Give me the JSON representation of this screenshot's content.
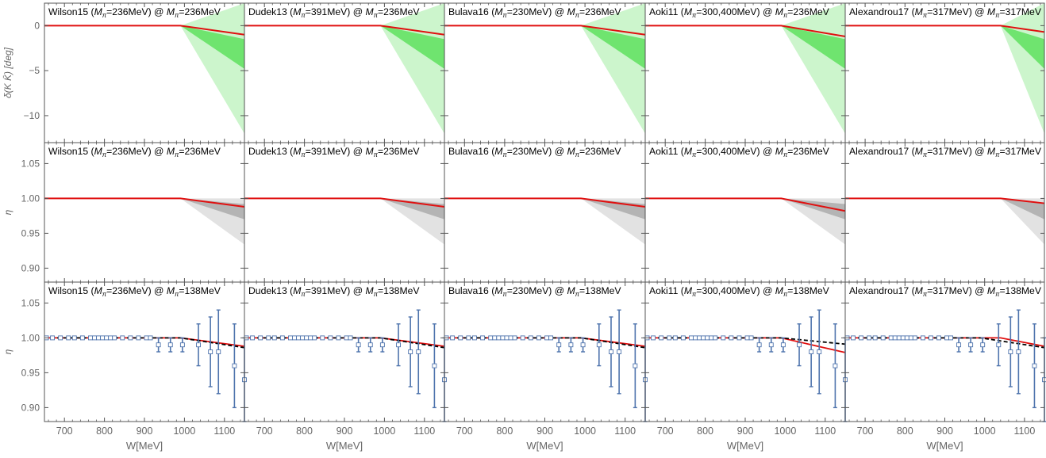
{
  "chart_data": {
    "type": "line",
    "layout": "grid of 3 rows × 5 columns sharing x axis",
    "xlabel": "W[MeV]",
    "xlim": [
      650,
      1150
    ],
    "xticks": [
      700,
      800,
      900,
      1000,
      1100
    ],
    "columns": [
      {
        "name": "Wilson15",
        "mpi_label": "(Mπ=236MeV)",
        "target_top": "236MeV"
      },
      {
        "name": "Dudek13",
        "mpi_label": "(Mπ=391MeV)",
        "target_top": "236MeV"
      },
      {
        "name": "Bulava16",
        "mpi_label": "(Mπ=230MeV)",
        "target_top": "236MeV"
      },
      {
        "name": "Aoki11",
        "mpi_label": "(Mπ=300,400MeV)",
        "target_top": "236MeV"
      },
      {
        "name": "Alexandrou17",
        "mpi_label": "(Mπ=317MeV)",
        "target_top": "317MeV"
      }
    ],
    "rows": [
      {
        "id": "phase",
        "ylabel": "δ(K K̄) [deg]",
        "ylim": [
          -13,
          2.5
        ],
        "yticks": [
          0,
          -5,
          -10
        ],
        "ytick_labels": [
          "0",
          "−5",
          "−10"
        ],
        "threshold": 990,
        "band_colors": {
          "outer": "#ccf5cc",
          "inner": "#6fe46f",
          "line": "#e01010"
        },
        "series": [
          {
            "x": [
              650,
              990,
              1150
            ],
            "y": [
              0,
              0,
              -1.0
            ],
            "outer_lo": [
              0,
              0,
              -12
            ],
            "outer_hi": [
              0,
              0,
              2.5
            ],
            "inner_lo": [
              0,
              0,
              -4.8
            ],
            "inner_hi": [
              0,
              0,
              -1.5
            ]
          },
          {
            "x": [
              650,
              990,
              1150
            ],
            "y": [
              0,
              0,
              -1.0
            ],
            "outer_lo": [
              0,
              0,
              -12
            ],
            "outer_hi": [
              0,
              0,
              2.5
            ],
            "inner_lo": [
              0,
              0,
              -4.8
            ],
            "inner_hi": [
              0,
              0,
              -1.5
            ]
          },
          {
            "x": [
              650,
              990,
              1150
            ],
            "y": [
              0,
              0,
              -1.0
            ],
            "outer_lo": [
              0,
              0,
              -12
            ],
            "outer_hi": [
              0,
              0,
              2.5
            ],
            "inner_lo": [
              0,
              0,
              -4.8
            ],
            "inner_hi": [
              0,
              0,
              -1.5
            ]
          },
          {
            "x": [
              650,
              990,
              1150
            ],
            "y": [
              0,
              0,
              -1.2
            ],
            "outer_lo": [
              0,
              0,
              -12
            ],
            "outer_hi": [
              0,
              0,
              2.5
            ],
            "inner_lo": [
              0,
              0,
              -4.8
            ],
            "inner_hi": [
              0,
              0,
              -1.5
            ]
          },
          {
            "x": [
              650,
              1040,
              1150
            ],
            "y": [
              0,
              0,
              -0.7
            ],
            "outer_lo": [
              0,
              0,
              -12
            ],
            "outer_hi": [
              0,
              0,
              2.5
            ],
            "inner_lo": [
              0,
              0,
              -4.8
            ],
            "inner_hi": [
              0,
              0,
              -1.5
            ]
          }
        ]
      },
      {
        "id": "inelasticity",
        "ylabel": "η",
        "ylim": [
          0.88,
          1.08
        ],
        "yticks": [
          0.9,
          0.95,
          1.0,
          1.05
        ],
        "ytick_labels": [
          "0.90",
          "0.95",
          "1.00",
          "1.05"
        ],
        "threshold": 990,
        "band_colors": {
          "outer": "#e2e2e2",
          "inner": "#b4b4b4",
          "line": "#e01010"
        },
        "series": [
          {
            "x": [
              650,
              990,
              1150
            ],
            "y": [
              1.0,
              1.0,
              0.988
            ],
            "outer_lo": [
              1.0,
              1.0,
              0.934
            ],
            "outer_hi": [
              1.0,
              1.0,
              1.0
            ],
            "inner_lo": [
              1.0,
              1.0,
              0.97
            ],
            "inner_hi": [
              1.0,
              1.0,
              0.992
            ]
          },
          {
            "x": [
              650,
              990,
              1150
            ],
            "y": [
              1.0,
              1.0,
              0.988
            ],
            "outer_lo": [
              1.0,
              1.0,
              0.934
            ],
            "outer_hi": [
              1.0,
              1.0,
              1.0
            ],
            "inner_lo": [
              1.0,
              1.0,
              0.97
            ],
            "inner_hi": [
              1.0,
              1.0,
              0.992
            ]
          },
          {
            "x": [
              650,
              990,
              1150
            ],
            "y": [
              1.0,
              1.0,
              0.988
            ],
            "outer_lo": [
              1.0,
              1.0,
              0.934
            ],
            "outer_hi": [
              1.0,
              1.0,
              1.0
            ],
            "inner_lo": [
              1.0,
              1.0,
              0.97
            ],
            "inner_hi": [
              1.0,
              1.0,
              0.992
            ]
          },
          {
            "x": [
              650,
              990,
              1150
            ],
            "y": [
              1.0,
              1.0,
              0.982
            ],
            "outer_lo": [
              1.0,
              1.0,
              0.934
            ],
            "outer_hi": [
              1.0,
              1.0,
              1.0
            ],
            "inner_lo": [
              1.0,
              1.0,
              0.97
            ],
            "inner_hi": [
              1.0,
              1.0,
              0.992
            ]
          },
          {
            "x": [
              650,
              1040,
              1150
            ],
            "y": [
              1.0,
              1.0,
              0.993
            ],
            "outer_lo": [
              1.0,
              1.0,
              0.934
            ],
            "outer_hi": [
              1.0,
              1.0,
              1.0
            ],
            "inner_lo": [
              1.0,
              1.0,
              0.97
            ],
            "inner_hi": [
              1.0,
              1.0,
              0.992
            ]
          }
        ]
      },
      {
        "id": "physical",
        "ylabel": "η",
        "ylim": [
          0.88,
          1.08
        ],
        "yticks": [
          0.9,
          0.95,
          1.0,
          1.05
        ],
        "ytick_labels": [
          "0.90",
          "0.95",
          "1.00",
          "1.05"
        ],
        "line_colors": {
          "model": "#e01010",
          "reference": "#000000",
          "points": "#4f74ad"
        },
        "data_points": {
          "x": [
            655,
            670,
            690,
            710,
            725,
            745,
            765,
            775,
            785,
            795,
            805,
            815,
            825,
            845,
            865,
            885,
            905,
            915,
            935,
            965,
            995,
            1035,
            1065,
            1085,
            1125,
            1150
          ],
          "y": [
            1.0,
            1.0,
            1.0,
            1.0,
            1.0,
            1.0,
            1.0,
            1.0,
            1.0,
            1.0,
            1.0,
            1.0,
            1.0,
            1.0,
            1.0,
            1.0,
            1.0,
            1.0,
            0.99,
            0.99,
            0.99,
            0.99,
            0.98,
            0.98,
            0.96,
            0.94
          ],
          "err": [
            0,
            0,
            0,
            0,
            0,
            0,
            0,
            0,
            0,
            0,
            0,
            0,
            0,
            0,
            0,
            0,
            0,
            0,
            0.01,
            0.01,
            0.01,
            0.03,
            0.05,
            0.06,
            0.06,
            0.06
          ]
        },
        "series": [
          {
            "model": {
              "x": [
                650,
                990,
                1150
              ],
              "y": [
                1.0,
                1.0,
                0.988
              ]
            },
            "reference": {
              "x": [
                650,
                990,
                1150
              ],
              "y": [
                1.0,
                1.0,
                0.986
              ]
            }
          },
          {
            "model": {
              "x": [
                650,
                990,
                1150
              ],
              "y": [
                1.0,
                1.0,
                0.988
              ]
            },
            "reference": {
              "x": [
                650,
                990,
                1150
              ],
              "y": [
                1.0,
                1.0,
                0.986
              ]
            }
          },
          {
            "model": {
              "x": [
                650,
                990,
                1150
              ],
              "y": [
                1.0,
                1.0,
                0.988
              ]
            },
            "reference": {
              "x": [
                650,
                990,
                1150
              ],
              "y": [
                1.0,
                1.0,
                0.986
              ]
            }
          },
          {
            "model": {
              "x": [
                650,
                990,
                1150
              ],
              "y": [
                1.0,
                1.0,
                0.979
              ]
            },
            "reference": {
              "x": [
                650,
                990,
                1150
              ],
              "y": [
                1.0,
                1.0,
                0.991
              ]
            }
          },
          {
            "model": {
              "x": [
                650,
                1040,
                1150
              ],
              "y": [
                1.0,
                1.0,
                0.988
              ]
            },
            "reference": {
              "x": [
                650,
                990,
                1150
              ],
              "y": [
                1.0,
                1.0,
                0.986
              ]
            }
          }
        ]
      }
    ],
    "grid": false,
    "legend": "none"
  }
}
